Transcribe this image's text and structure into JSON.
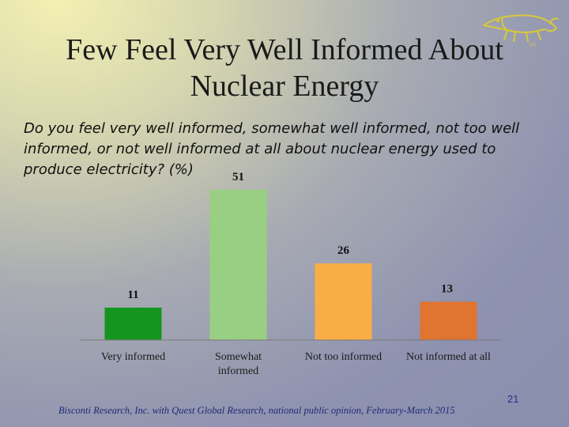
{
  "slide": {
    "title_line1": "Few Feel Very Well Informed About",
    "title_line2": "Nuclear Energy",
    "question": "Do you feel very well informed, somewhat well informed, not too well informed, or not well informed at all about nuclear energy used to produce electricity? (%)",
    "source": "Bisconti Research, Inc. with Quest Global Research, national public opinion, February-March 2015",
    "page_number": "21"
  },
  "chart_data": {
    "type": "bar",
    "categories": [
      "Very informed",
      "Somewhat informed",
      "Not too informed",
      "Not informed at all"
    ],
    "category_lines": [
      [
        "Very informed"
      ],
      [
        "Somewhat",
        "informed"
      ],
      [
        "Not too informed"
      ],
      [
        "Not informed at all"
      ]
    ],
    "values": [
      11,
      51,
      26,
      13
    ],
    "colors": [
      "#14961e",
      "#99cf82",
      "#f9ae45",
      "#e07431"
    ],
    "title": "",
    "xlabel": "",
    "ylabel": "",
    "ylim": [
      0,
      51
    ],
    "grid": false
  },
  "colors": {
    "title_text": "#1a1a1a",
    "source_text": "#1f2a78",
    "axis": "#7a7a7a"
  }
}
